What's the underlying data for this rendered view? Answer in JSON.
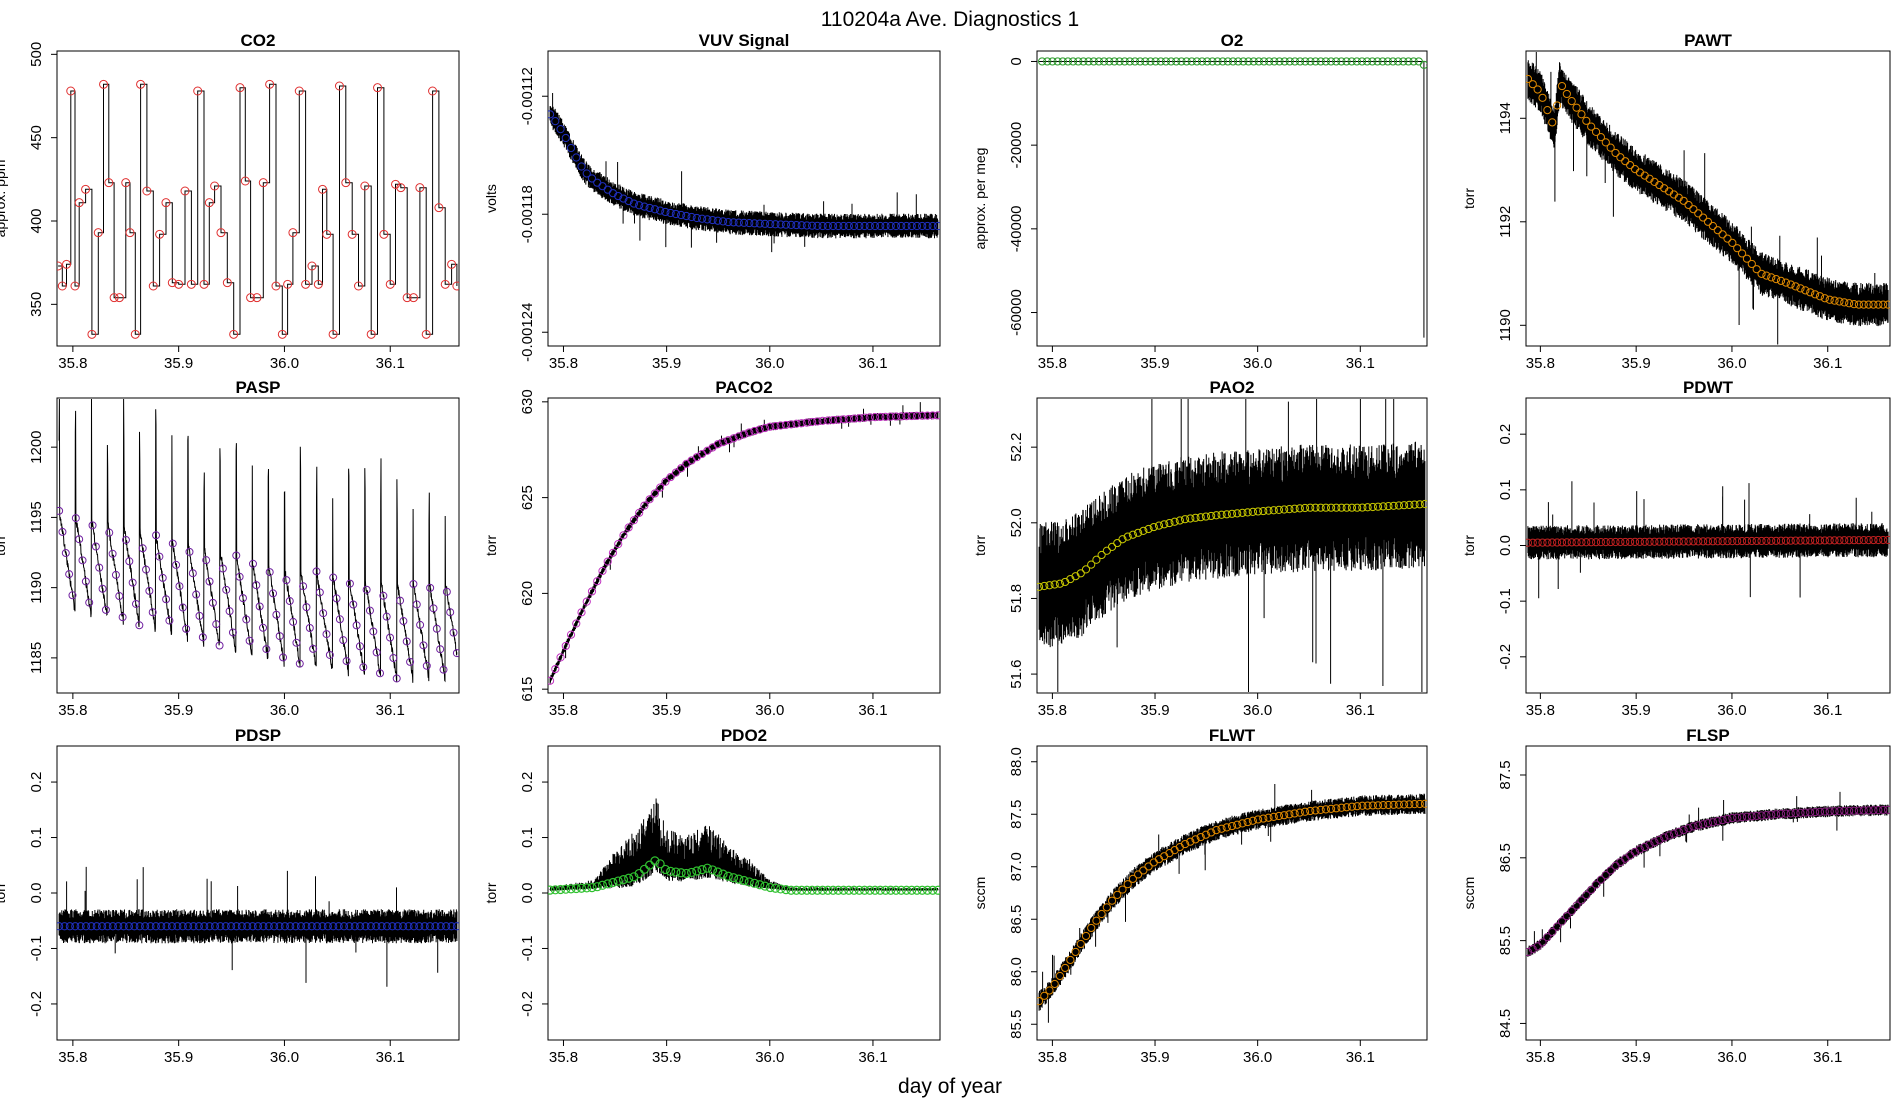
{
  "figure": {
    "title": "110204a   Ave. Diagnostics 1",
    "xlabel": "day of year"
  },
  "chart_data": [
    {
      "type": "line",
      "title": "CO2",
      "ylabel": "approx. ppm",
      "xlim": [
        35.785,
        36.165
      ],
      "ylim": [
        325,
        502
      ],
      "xticks": [
        35.8,
        35.9,
        36.0,
        36.1
      ],
      "xtick_labels": [
        "35.8",
        "35.9",
        "36.0",
        "36.1"
      ],
      "yticks": [
        350,
        400,
        450,
        500
      ],
      "ytick_labels": [
        "350",
        "400",
        "450",
        "500"
      ],
      "marker_color": "#e03030",
      "pattern": "square-wave",
      "x": [
        35.786,
        35.79,
        35.794,
        35.798,
        35.802,
        35.806,
        35.812,
        35.818,
        35.824,
        35.829,
        35.834,
        35.839,
        35.844,
        35.85,
        35.854,
        35.859,
        35.864,
        35.87,
        35.876,
        35.882,
        35.888,
        35.894,
        35.9,
        35.906,
        35.912,
        35.918,
        35.924,
        35.929,
        35.934,
        35.94,
        35.946,
        35.952,
        35.958,
        35.963,
        35.968,
        35.974,
        35.98,
        35.986,
        35.992,
        35.998,
        36.003,
        36.008,
        36.014,
        36.02,
        36.026,
        36.032,
        36.036,
        36.04,
        36.046,
        36.052,
        36.058,
        36.064,
        36.07,
        36.076,
        36.082,
        36.088,
        36.094,
        36.1,
        36.105,
        36.11,
        36.116,
        36.122,
        36.128,
        36.134,
        36.14,
        36.146,
        36.152,
        36.158,
        36.163
      ],
      "values": [
        373,
        361,
        374,
        478,
        361,
        411,
        419,
        332,
        393,
        482,
        423,
        354,
        354,
        423,
        393,
        332,
        482,
        418,
        361,
        392,
        411,
        363,
        362,
        418,
        362,
        478,
        362,
        411,
        421,
        393,
        363,
        332,
        480,
        424,
        354,
        354,
        423,
        482,
        361,
        332,
        362,
        393,
        478,
        362,
        373,
        362,
        419,
        392,
        332,
        481,
        423,
        392,
        361,
        421,
        332,
        480,
        392,
        362,
        422,
        420,
        354,
        354,
        420,
        332,
        478,
        408,
        362,
        374,
        361
      ]
    },
    {
      "type": "line",
      "title": "VUV Signal",
      "ylabel": "volts",
      "xlim": [
        35.785,
        36.165
      ],
      "ylim": [
        -0.001247,
        -0.001097
      ],
      "xticks": [
        35.8,
        35.9,
        36.0,
        36.1
      ],
      "xtick_labels": [
        "35.8",
        "35.9",
        "36.0",
        "36.1"
      ],
      "yticks": [
        -0.00112,
        -0.00118,
        -0.00124
      ],
      "ytick_labels": [
        "-0.00112",
        "-0.00118",
        "-0.00124"
      ],
      "marker_color": "#2030c0",
      "band_halfwidth": 4.5e-06,
      "x": [
        35.785,
        35.79,
        35.8,
        35.81,
        35.82,
        35.83,
        35.85,
        35.87,
        35.9,
        35.93,
        35.96,
        36.0,
        36.05,
        36.1,
        36.165
      ],
      "values": [
        -0.001128,
        -0.001131,
        -0.001139,
        -0.001149,
        -0.001158,
        -0.001163,
        -0.00117,
        -0.001175,
        -0.001179,
        -0.001182,
        -0.001184,
        -0.001185,
        -0.001186,
        -0.001186,
        -0.001186
      ]
    },
    {
      "type": "line",
      "title": "O2",
      "ylabel": "approx. per meg",
      "xlim": [
        35.785,
        36.165
      ],
      "ylim": [
        -68000,
        2500
      ],
      "xticks": [
        35.8,
        35.9,
        36.0,
        36.1
      ],
      "xtick_labels": [
        "35.8",
        "35.9",
        "36.0",
        "36.1"
      ],
      "yticks": [
        0,
        -20000,
        -40000,
        -60000
      ],
      "ytick_labels": [
        "0",
        "-20000",
        "-40000",
        "-60000"
      ],
      "marker_color": "#2a9a2a",
      "x": [
        35.785,
        36.16,
        36.162,
        36.164
      ],
      "values": [
        0,
        0,
        -800,
        -66000
      ]
    },
    {
      "type": "line",
      "title": "PAWT",
      "ylabel": "torr",
      "xlim": [
        35.785,
        36.165
      ],
      "ylim": [
        1189.6,
        1195.3
      ],
      "xticks": [
        35.8,
        35.9,
        36.0,
        36.1
      ],
      "xtick_labels": [
        "35.8",
        "35.9",
        "36.0",
        "36.1"
      ],
      "yticks": [
        1190,
        1192,
        1194
      ],
      "ytick_labels": [
        "1190",
        "1192",
        "1194"
      ],
      "marker_color": "#e08a00",
      "band_halfwidth": 0.3,
      "x": [
        35.785,
        35.8,
        35.815,
        35.82,
        35.83,
        35.85,
        35.88,
        35.9,
        35.95,
        36.0,
        36.03,
        36.06,
        36.1,
        36.13,
        36.165
      ],
      "values": [
        1194.8,
        1194.5,
        1193.8,
        1194.7,
        1194.4,
        1193.9,
        1193.3,
        1193.0,
        1192.4,
        1191.6,
        1191.0,
        1190.8,
        1190.5,
        1190.4,
        1190.4
      ]
    },
    {
      "type": "line",
      "title": "PASP",
      "ylabel": "torr",
      "xlim": [
        35.785,
        36.165
      ],
      "ylim": [
        1182.5,
        1203.5
      ],
      "xticks": [
        35.8,
        35.9,
        36.0,
        36.1
      ],
      "xtick_labels": [
        "35.8",
        "35.9",
        "36.0",
        "36.1"
      ],
      "yticks": [
        1185,
        1190,
        1195,
        1200
      ],
      "ytick_labels": [
        "1185",
        "1190",
        "1195",
        "1200"
      ],
      "marker_color": "#7020a0",
      "pattern": "sawtooth",
      "period": 0.0152,
      "amplitude": 3.5,
      "x": [
        35.785,
        35.85,
        35.9,
        35.95,
        36.0,
        36.05,
        36.1,
        36.165
      ],
      "values": [
        1192,
        1191,
        1190,
        1189,
        1188,
        1187.5,
        1187,
        1187
      ]
    },
    {
      "type": "line",
      "title": "PACO2",
      "ylabel": "torr",
      "xlim": [
        35.785,
        36.165
      ],
      "ylim": [
        614.8,
        630.2
      ],
      "xticks": [
        35.8,
        35.9,
        36.0,
        36.1
      ],
      "xtick_labels": [
        "35.8",
        "35.9",
        "36.0",
        "36.1"
      ],
      "yticks": [
        615,
        620,
        625,
        630
      ],
      "ytick_labels": [
        "615",
        "620",
        "625",
        "630"
      ],
      "marker_color": "#c030c0",
      "band_halfwidth": 0.15,
      "x": [
        35.785,
        35.8,
        35.82,
        35.84,
        35.86,
        35.88,
        35.9,
        35.92,
        35.95,
        35.98,
        36.0,
        36.05,
        36.1,
        36.165
      ],
      "values": [
        615.2,
        617,
        619.3,
        621.4,
        623.2,
        624.7,
        625.9,
        626.8,
        627.8,
        628.4,
        628.7,
        629.0,
        629.2,
        629.3
      ]
    },
    {
      "type": "line",
      "title": "PAO2",
      "ylabel": "torr",
      "xlim": [
        35.785,
        36.165
      ],
      "ylim": [
        51.55,
        52.33
      ],
      "xticks": [
        35.8,
        35.9,
        36.0,
        36.1
      ],
      "xtick_labels": [
        "35.8",
        "35.9",
        "36.0",
        "36.1"
      ],
      "yticks": [
        51.6,
        51.8,
        52.0,
        52.2
      ],
      "ytick_labels": [
        "51.6",
        "51.8",
        "52.0",
        "52.2"
      ],
      "marker_color": "#c8c800",
      "band_halfwidth": 0.12,
      "x": [
        35.785,
        35.81,
        35.83,
        35.85,
        35.87,
        35.9,
        35.93,
        35.96,
        36.0,
        36.05,
        36.1,
        36.165
      ],
      "values": [
        51.83,
        51.84,
        51.87,
        51.92,
        51.96,
        51.99,
        52.01,
        52.02,
        52.03,
        52.04,
        52.04,
        52.05
      ]
    },
    {
      "type": "line",
      "title": "PDWT",
      "ylabel": "torr",
      "xlim": [
        35.785,
        36.165
      ],
      "ylim": [
        -0.265,
        0.265
      ],
      "xticks": [
        35.8,
        35.9,
        36.0,
        36.1
      ],
      "xtick_labels": [
        "35.8",
        "35.9",
        "36.0",
        "36.1"
      ],
      "yticks": [
        -0.2,
        -0.1,
        0.0,
        0.1,
        0.2
      ],
      "ytick_labels": [
        "-0.2",
        "-0.1",
        "0.0",
        "0.1",
        "0.2"
      ],
      "marker_color": "#c02020",
      "band_halfwidth": 0.022,
      "x": [
        35.785,
        36.165
      ],
      "values": [
        0.005,
        0.01
      ]
    },
    {
      "type": "line",
      "title": "PDSP",
      "ylabel": "torr",
      "xlim": [
        35.785,
        36.165
      ],
      "ylim": [
        -0.265,
        0.265
      ],
      "xticks": [
        35.8,
        35.9,
        36.0,
        36.1
      ],
      "xtick_labels": [
        "35.8",
        "35.9",
        "36.0",
        "36.1"
      ],
      "yticks": [
        -0.2,
        -0.1,
        0.0,
        0.1,
        0.2
      ],
      "ytick_labels": [
        "-0.2",
        "-0.1",
        "0.0",
        "0.1",
        "0.2"
      ],
      "marker_color": "#2030c0",
      "band_halfwidth": 0.022,
      "x": [
        35.785,
        36.165
      ],
      "values": [
        -0.06,
        -0.06
      ]
    },
    {
      "type": "line",
      "title": "PDO2",
      "ylabel": "torr",
      "xlim": [
        35.785,
        36.165
      ],
      "ylim": [
        -0.265,
        0.265
      ],
      "xticks": [
        35.8,
        35.9,
        36.0,
        36.1
      ],
      "xtick_labels": [
        "35.8",
        "35.9",
        "36.0",
        "36.1"
      ],
      "yticks": [
        -0.2,
        -0.1,
        0.0,
        0.1,
        0.2
      ],
      "ytick_labels": [
        "-0.2",
        "-0.1",
        "0.0",
        "0.1",
        "0.2"
      ],
      "marker_color": "#30c030",
      "x": [
        35.785,
        35.83,
        35.85,
        35.87,
        35.89,
        35.9,
        35.92,
        35.94,
        35.96,
        35.98,
        36.0,
        36.02,
        36.165
      ],
      "values": [
        0.005,
        0.01,
        0.02,
        0.03,
        0.06,
        0.04,
        0.035,
        0.045,
        0.03,
        0.02,
        0.01,
        0.005,
        0.005
      ],
      "spread": [
        0.004,
        0.01,
        0.04,
        0.06,
        0.08,
        0.06,
        0.05,
        0.06,
        0.04,
        0.03,
        0.01,
        0.004,
        0.003
      ]
    },
    {
      "type": "line",
      "title": "FLWT",
      "ylabel": "sccm",
      "xlim": [
        35.785,
        36.165
      ],
      "ylim": [
        85.35,
        88.15
      ],
      "xticks": [
        35.8,
        35.9,
        36.0,
        36.1
      ],
      "xtick_labels": [
        "35.8",
        "35.9",
        "36.0",
        "36.1"
      ],
      "yticks": [
        85.5,
        86.0,
        86.5,
        87.0,
        87.5,
        88.0
      ],
      "ytick_labels": [
        "85.5",
        "86.0",
        "86.5",
        "87.0",
        "87.5",
        "88.0"
      ],
      "marker_color": "#e08a00",
      "band_halfwidth": 0.07,
      "x": [
        35.785,
        35.8,
        35.82,
        35.84,
        35.86,
        35.88,
        35.9,
        35.93,
        35.96,
        36.0,
        36.05,
        36.1,
        36.165
      ],
      "values": [
        85.7,
        85.85,
        86.15,
        86.45,
        86.7,
        86.9,
        87.05,
        87.22,
        87.35,
        87.45,
        87.53,
        87.58,
        87.6
      ]
    },
    {
      "type": "line",
      "title": "FLSP",
      "ylabel": "sccm",
      "xlim": [
        35.785,
        36.165
      ],
      "ylim": [
        84.3,
        87.85
      ],
      "xticks": [
        35.8,
        35.9,
        36.0,
        36.1
      ],
      "xtick_labels": [
        "35.8",
        "35.9",
        "36.0",
        "36.1"
      ],
      "yticks": [
        84.5,
        85.5,
        86.5,
        87.5
      ],
      "ytick_labels": [
        "84.5",
        "85.5",
        "86.5",
        "87.5"
      ],
      "marker_color": "#8a2080",
      "band_halfwidth": 0.05,
      "x": [
        35.785,
        35.8,
        35.82,
        35.84,
        35.86,
        35.88,
        35.9,
        35.93,
        35.96,
        36.0,
        36.05,
        36.1,
        36.165
      ],
      "values": [
        85.35,
        85.45,
        85.7,
        85.95,
        86.2,
        86.42,
        86.58,
        86.75,
        86.88,
        86.98,
        87.03,
        87.06,
        87.08
      ]
    }
  ]
}
